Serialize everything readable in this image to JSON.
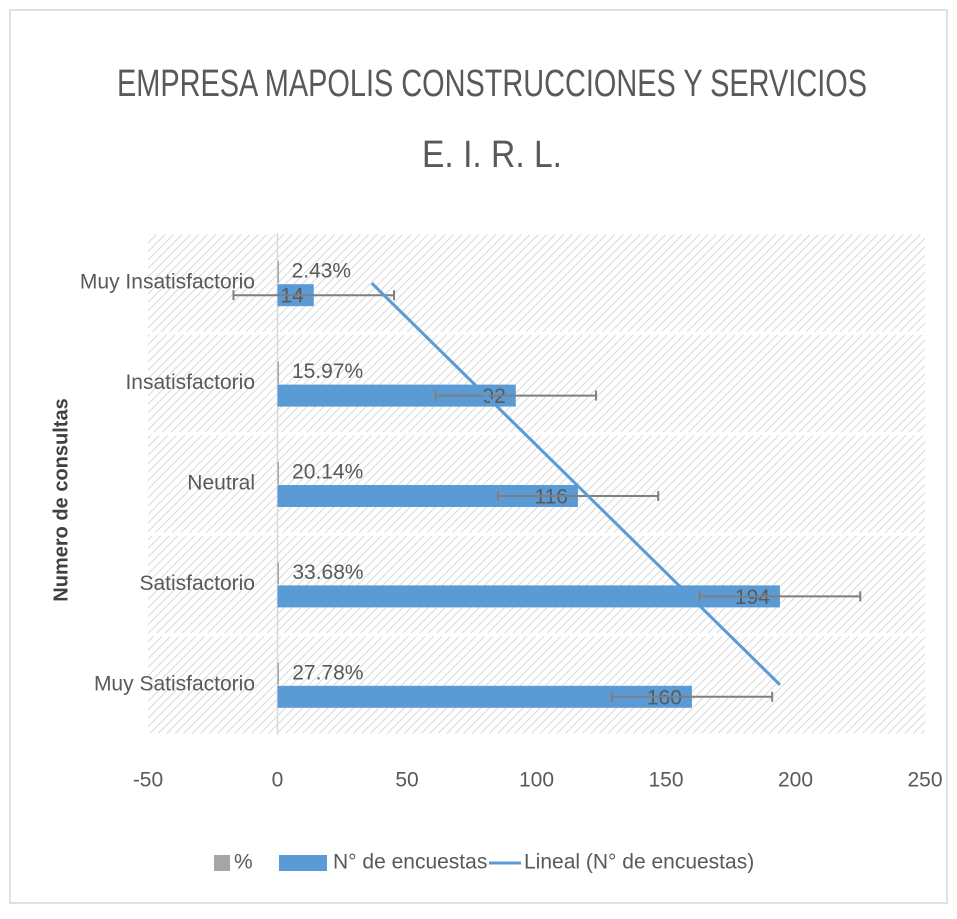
{
  "chart_data": {
    "type": "bar",
    "orientation": "horizontal",
    "title": [
      "EMPRESA MAPOLIS CONSTRUCCIONES Y SERVICIOS",
      "E. I. R. L."
    ],
    "y_label": "Numero de consultas",
    "categories": [
      "Muy Insatisfactorio",
      "Insatisfactorio",
      "Neutral",
      "Satisfactorio",
      "Muy Satisfactorio"
    ],
    "series": [
      {
        "name": "%",
        "color": "#a5a5a5",
        "values": [
          0.0243,
          0.1597,
          0.2014,
          0.3368,
          0.2778
        ],
        "value_labels": [
          "2.43%",
          "15.97%",
          "20.14%",
          "33.68%",
          "27.78%"
        ]
      },
      {
        "name": "N° de encuestas",
        "color": "#5b9bd5",
        "values": [
          14,
          92,
          116,
          194,
          160
        ],
        "errors": [
          31,
          31,
          31,
          31,
          31
        ]
      }
    ],
    "trendline": {
      "name": "Lineal (N° de encuestas)",
      "color": "#5b9bd5",
      "series": 1
    },
    "xlim": [
      -50,
      250
    ],
    "xticks": [
      -50,
      0,
      50,
      100,
      150,
      200,
      250
    ]
  }
}
